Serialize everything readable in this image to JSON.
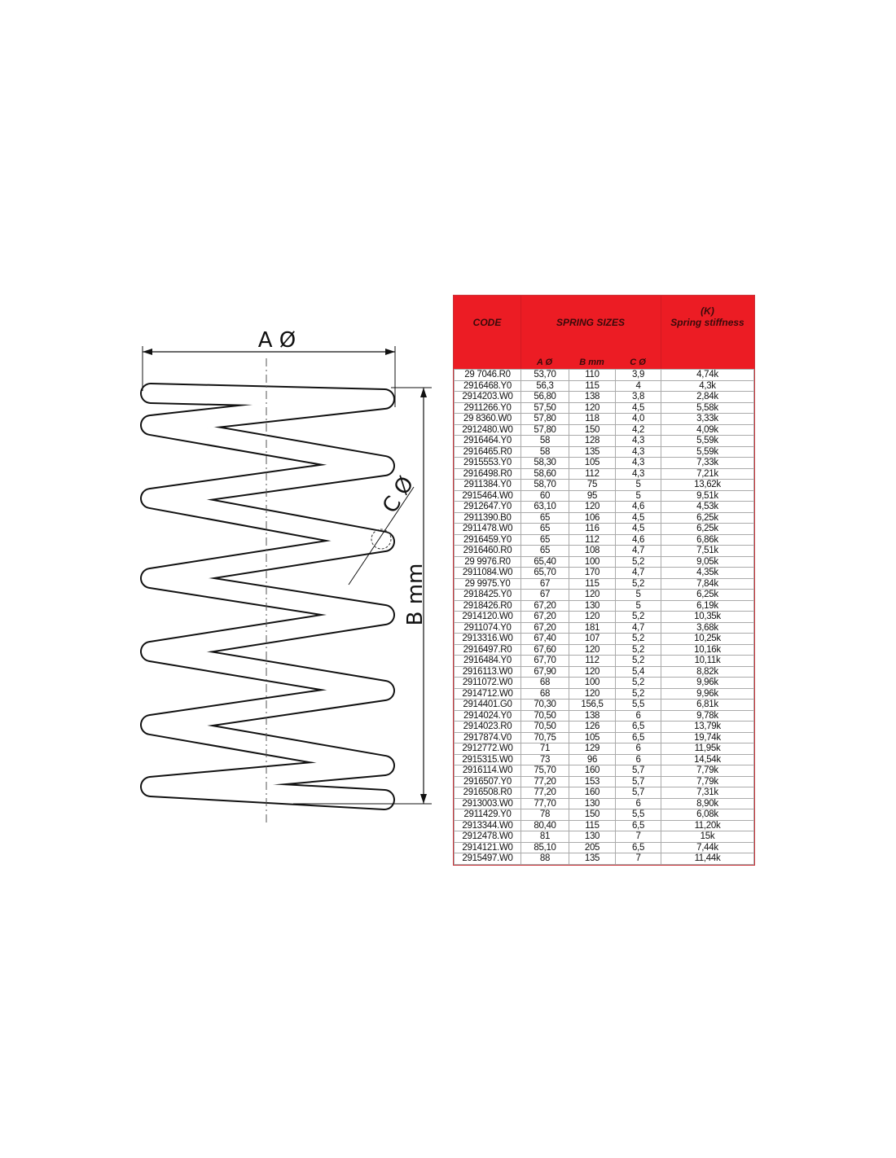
{
  "diagram": {
    "labels": {
      "a": "A Ø",
      "b": "B mm",
      "c": "C Ø"
    }
  },
  "table": {
    "headers": {
      "code": "CODE",
      "spring_sizes": "SPRING SIZES",
      "k_symbol": "(K)",
      "stiffness": "Spring stiffness",
      "a": "A Ø",
      "b": "B mm",
      "c": "C Ø"
    },
    "header_color": "#ec1c24",
    "rows": [
      [
        "29 7046.R0",
        "53,70",
        "110",
        "3,9",
        "4,74k"
      ],
      [
        "2916468.Y0",
        "56,3",
        "115",
        "4",
        "4,3k"
      ],
      [
        "2914203.W0",
        "56,80",
        "138",
        "3,8",
        "2,84k"
      ],
      [
        "2911266.Y0",
        "57,50",
        "120",
        "4,5",
        "5,58k"
      ],
      [
        "29 8360.W0",
        "57,80",
        "118",
        "4,0",
        "3,33k"
      ],
      [
        "2912480.W0",
        "57,80",
        "150",
        "4,2",
        "4,09k"
      ],
      [
        "2916464.Y0",
        "58",
        "128",
        "4,3",
        "5,59k"
      ],
      [
        "2916465.R0",
        "58",
        "135",
        "4,3",
        "5,59k"
      ],
      [
        "2915553.Y0",
        "58,30",
        "105",
        "4,3",
        "7,33k"
      ],
      [
        "2916498.R0",
        "58,60",
        "112",
        "4,3",
        "7,21k"
      ],
      [
        "2911384.Y0",
        "58,70",
        "75",
        "5",
        "13,62k"
      ],
      [
        "2915464.W0",
        "60",
        "95",
        "5",
        "9,51k"
      ],
      [
        "2912647.Y0",
        "63,10",
        "120",
        "4,6",
        "4,53k"
      ],
      [
        "2911390.B0",
        "65",
        "106",
        "4,5",
        "6,25k"
      ],
      [
        "2911478.W0",
        "65",
        "116",
        "4,5",
        "6,25k"
      ],
      [
        "2916459.Y0",
        "65",
        "112",
        "4,6",
        "6,86k"
      ],
      [
        "2916460.R0",
        "65",
        "108",
        "4,7",
        "7,51k"
      ],
      [
        "29 9976.R0",
        "65,40",
        "100",
        "5,2",
        "9,05k"
      ],
      [
        "2911084.W0",
        "65,70",
        "170",
        "4,7",
        "4,35k"
      ],
      [
        "29 9975.Y0",
        "67",
        "115",
        "5,2",
        "7,84k"
      ],
      [
        "2918425.Y0",
        "67",
        "120",
        "5",
        "6,25k"
      ],
      [
        "2918426.R0",
        "67,20",
        "130",
        "5",
        "6,19k"
      ],
      [
        "2914120.W0",
        "67,20",
        "120",
        "5,2",
        "10,35k"
      ],
      [
        "2911074.Y0",
        "67,20",
        "181",
        "4,7",
        "3,68k"
      ],
      [
        "2913316.W0",
        "67,40",
        "107",
        "5,2",
        "10,25k"
      ],
      [
        "2916497.R0",
        "67,60",
        "120",
        "5,2",
        "10,16k"
      ],
      [
        "2916484.Y0",
        "67,70",
        "112",
        "5,2",
        "10,11k"
      ],
      [
        "2916113.W0",
        "67,90",
        "120",
        "5,4",
        "8,82k"
      ],
      [
        "2911072.W0",
        "68",
        "100",
        "5,2",
        "9,96k"
      ],
      [
        "2914712.W0",
        "68",
        "120",
        "5,2",
        "9,96k"
      ],
      [
        "2914401.G0",
        "70,30",
        "156,5",
        "5,5",
        "6,81k"
      ],
      [
        "2914024.Y0",
        "70,50",
        "138",
        "6",
        "9,78k"
      ],
      [
        "2914023.R0",
        "70,50",
        "126",
        "6,5",
        "13,79k"
      ],
      [
        "2917874.V0",
        "70,75",
        "105",
        "6,5",
        "19,74k"
      ],
      [
        "2912772.W0",
        "71",
        "129",
        "6",
        "11,95k"
      ],
      [
        "2915315.W0",
        "73",
        "96",
        "6",
        "14,54k"
      ],
      [
        "2916114.W0",
        "75,70",
        "160",
        "5,7",
        "7,79k"
      ],
      [
        "2916507.Y0",
        "77,20",
        "153",
        "5,7",
        "7,79k"
      ],
      [
        "2916508.R0",
        "77,20",
        "160",
        "5,7",
        "7,31k"
      ],
      [
        "2913003.W0",
        "77,70",
        "130",
        "6",
        "8,90k"
      ],
      [
        "2911429.Y0",
        "78",
        "150",
        "5,5",
        "6,08k"
      ],
      [
        "2913344.W0",
        "80,40",
        "115",
        "6,5",
        "11,20k"
      ],
      [
        "2912478.W0",
        "81",
        "130",
        "7",
        "15k"
      ],
      [
        "2914121.W0",
        "85,10",
        "205",
        "6,5",
        "7,44k"
      ],
      [
        "2915497.W0",
        "88",
        "135",
        "7",
        "11,44k"
      ]
    ]
  }
}
